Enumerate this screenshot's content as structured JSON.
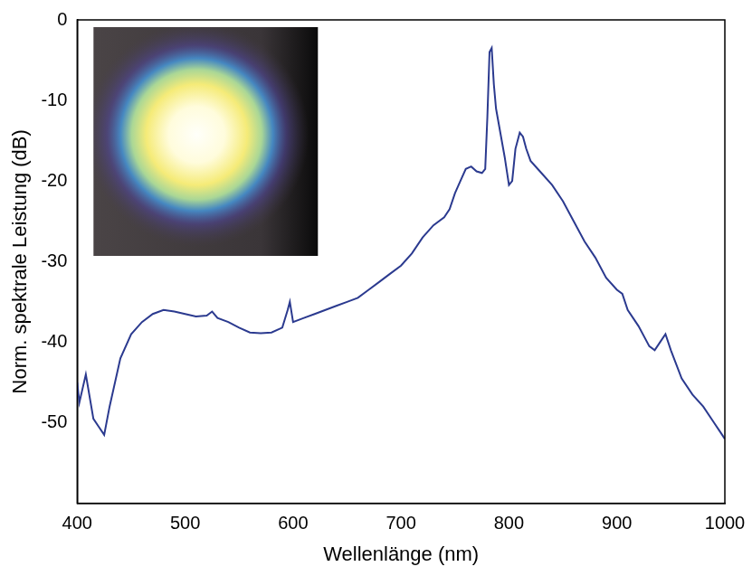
{
  "chart_data": {
    "type": "line",
    "x_label": "Wellenlänge (nm)",
    "y_label": "Norm. spektrale Leistung (dB)",
    "x": [
      400,
      402,
      408,
      415,
      420,
      425,
      430,
      440,
      450,
      460,
      470,
      480,
      490,
      500,
      510,
      520,
      525,
      530,
      540,
      550,
      560,
      570,
      580,
      590,
      595,
      597,
      600,
      610,
      620,
      630,
      640,
      650,
      660,
      670,
      680,
      690,
      700,
      710,
      720,
      730,
      740,
      745,
      750,
      755,
      760,
      765,
      770,
      775,
      778,
      780,
      782,
      784,
      786,
      788,
      792,
      796,
      800,
      803,
      806,
      810,
      813,
      816,
      820,
      830,
      840,
      850,
      860,
      870,
      880,
      890,
      900,
      905,
      910,
      920,
      930,
      935,
      940,
      945,
      950,
      960,
      970,
      980,
      990,
      995,
      1000
    ],
    "values": [
      -45,
      -47.5,
      -44,
      -49.5,
      -50.5,
      -51.5,
      -48,
      -42,
      -39,
      -37.5,
      -36.5,
      -36,
      -36.2,
      -36.5,
      -36.8,
      -36.7,
      -36.2,
      -37,
      -37.5,
      -38.2,
      -38.8,
      -38.9,
      -38.8,
      -38.2,
      -36,
      -35,
      -37.5,
      -37,
      -36.5,
      -36,
      -35.5,
      -35,
      -34.5,
      -33.5,
      -32.5,
      -31.5,
      -30.5,
      -29,
      -27,
      -25.5,
      -24.5,
      -23.5,
      -21.5,
      -20,
      -18.5,
      -18.2,
      -18.8,
      -19,
      -18.5,
      -12,
      -4,
      -3.5,
      -8,
      -11,
      -14,
      -17,
      -20.5,
      -20,
      -16,
      -14,
      -14.5,
      -16,
      -17.5,
      -19,
      -20.5,
      -22.5,
      -25,
      -27.5,
      -29.5,
      -32,
      -33.5,
      -34,
      -36,
      -38,
      -40.5,
      -41,
      -40,
      -39,
      -41,
      -44.5,
      -46.5,
      -48,
      -50,
      -51,
      -52
    ],
    "color": "#2b3a8f",
    "xlim": [
      400,
      1000
    ],
    "xticks": [
      400,
      500,
      600,
      700,
      800,
      900,
      1000
    ],
    "ylim": [
      -60,
      0
    ],
    "yticks": [
      -50,
      -40,
      -30,
      -20,
      -10,
      0
    ],
    "grid": false
  }
}
